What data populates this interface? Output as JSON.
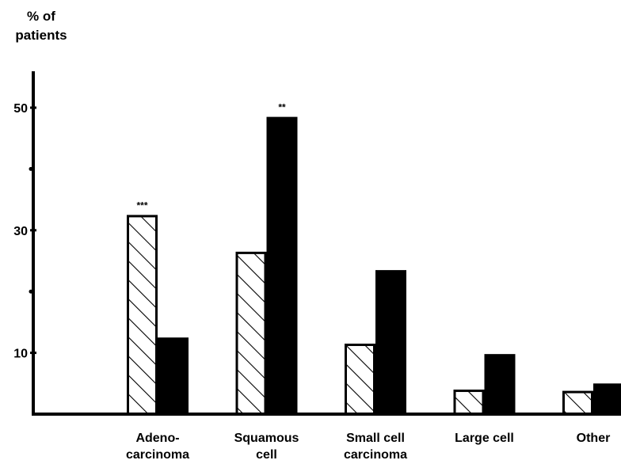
{
  "chart_data": {
    "type": "bar",
    "ylabel": [
      "% of",
      "patients"
    ],
    "ylim": [
      0,
      57
    ],
    "yticks": [
      10,
      30,
      50
    ],
    "minor_ticks": [
      20,
      40
    ],
    "categories": [
      [
        "Adeno-",
        "carcinoma"
      ],
      [
        "Squamous",
        "cell"
      ],
      [
        "Small cell",
        "carcinoma"
      ],
      [
        "Large cell"
      ],
      [
        "Other"
      ]
    ],
    "series": [
      {
        "pattern": "hatched",
        "values": [
          32.5,
          26.5,
          11.5,
          4,
          3.8
        ]
      },
      {
        "pattern": "solid",
        "values": [
          12.5,
          48.5,
          23.5,
          9.8,
          5
        ]
      }
    ],
    "annotations": [
      {
        "text": "***",
        "category": 0,
        "series": 0
      },
      {
        "text": "**",
        "category": 1,
        "series": 1
      }
    ],
    "legend": "none",
    "grid": false
  }
}
